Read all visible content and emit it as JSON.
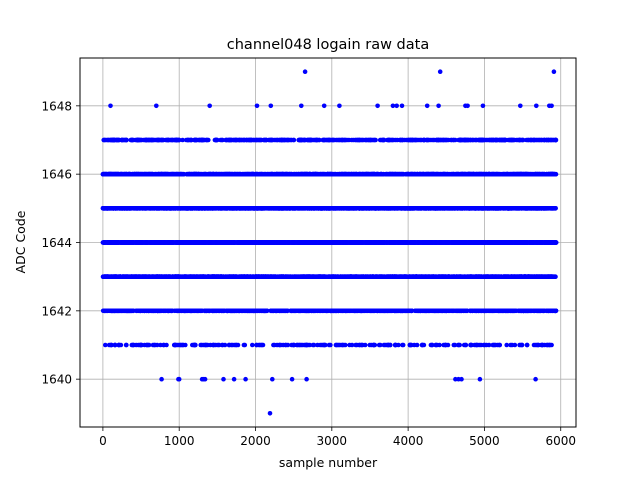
{
  "chart_data": {
    "type": "scatter",
    "title": "channel048 logain raw data",
    "xlabel": "sample number",
    "ylabel": "ADC Code",
    "xlim": [
      -300,
      6200
    ],
    "ylim": [
      1638.6,
      1649.4
    ],
    "xticks": [
      0,
      1000,
      2000,
      3000,
      4000,
      5000,
      6000
    ],
    "xtick_labels": [
      "0",
      "1000",
      "2000",
      "3000",
      "4000",
      "5000",
      "6000"
    ],
    "yticks": [
      1640,
      1642,
      1644,
      1646,
      1648
    ],
    "ytick_labels": [
      "1640",
      "1642",
      "1644",
      "1646",
      "1648"
    ],
    "grid": true,
    "marker_color": "#0000ff",
    "series": [
      {
        "name": "",
        "x_range": [
          0,
          5940
        ],
        "dense_rows": [
          {
            "y": 1642,
            "points": 1000
          },
          {
            "y": 1643,
            "points": 1600
          },
          {
            "y": 1644,
            "points": 3000
          },
          {
            "y": 1645,
            "points": 2400
          },
          {
            "y": 1646,
            "points": 1500
          },
          {
            "y": 1647,
            "points": 600
          },
          {
            "y": 1641,
            "points": 250
          }
        ],
        "points": [
          [
            2650,
            1649
          ],
          [
            4420,
            1649
          ],
          [
            5910,
            1649
          ],
          [
            100,
            1648
          ],
          [
            700,
            1648
          ],
          [
            1400,
            1648
          ],
          [
            2020,
            1648
          ],
          [
            2200,
            1648
          ],
          [
            2600,
            1648
          ],
          [
            2900,
            1648
          ],
          [
            3100,
            1648
          ],
          [
            3600,
            1648
          ],
          [
            3800,
            1648
          ],
          [
            3850,
            1648
          ],
          [
            3920,
            1648
          ],
          [
            4250,
            1648
          ],
          [
            4400,
            1648
          ],
          [
            4750,
            1648
          ],
          [
            4780,
            1648
          ],
          [
            4980,
            1648
          ],
          [
            5470,
            1648
          ],
          [
            5680,
            1648
          ],
          [
            5850,
            1648
          ],
          [
            5880,
            1648
          ],
          [
            770,
            1640
          ],
          [
            990,
            1640
          ],
          [
            1000,
            1640
          ],
          [
            1300,
            1640
          ],
          [
            1320,
            1640
          ],
          [
            1340,
            1640
          ],
          [
            1580,
            1640
          ],
          [
            1720,
            1640
          ],
          [
            1870,
            1640
          ],
          [
            2220,
            1640
          ],
          [
            2480,
            1640
          ],
          [
            2670,
            1640
          ],
          [
            4620,
            1640
          ],
          [
            4660,
            1640
          ],
          [
            4700,
            1640
          ],
          [
            4940,
            1640
          ],
          [
            5670,
            1640
          ],
          [
            2190,
            1639
          ]
        ]
      }
    ]
  }
}
